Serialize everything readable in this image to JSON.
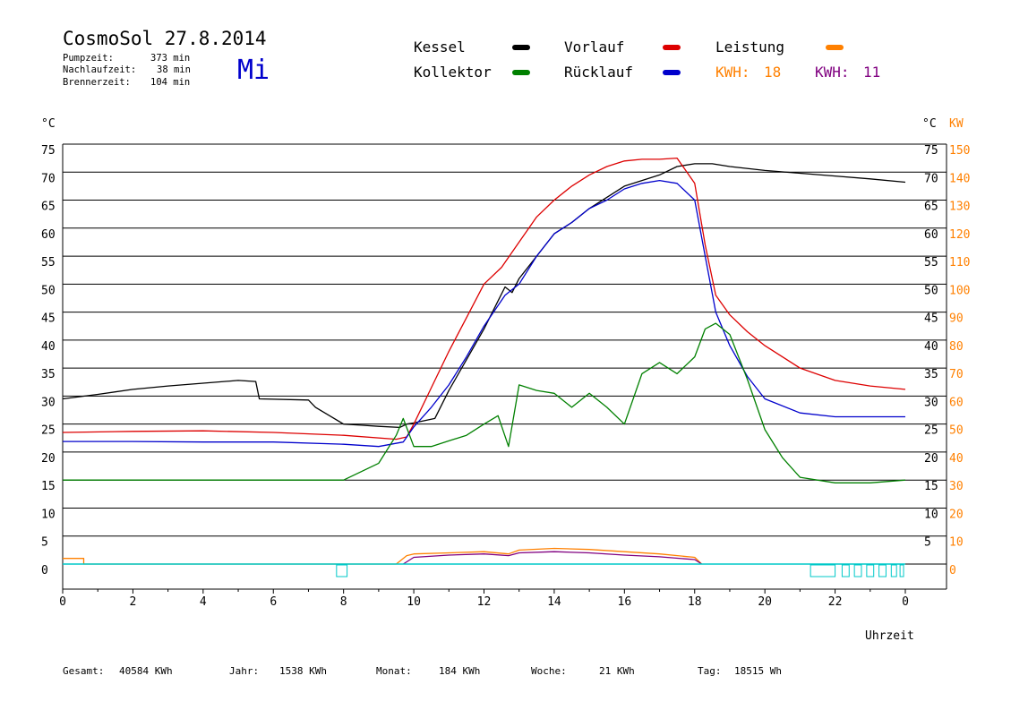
{
  "header": {
    "title": "CosmoSol 27.8.2014",
    "day": "Mi",
    "info": [
      {
        "label": "Pumpzeit:",
        "value": "373 min"
      },
      {
        "label": "Nachlaufzeit:",
        "value": "38 min"
      },
      {
        "label": "Brennerzeit:",
        "value": "104 min"
      }
    ]
  },
  "legend": {
    "items": [
      {
        "label": "Kessel",
        "color": "#000000"
      },
      {
        "label": "Vorlauf",
        "color": "#dd0000"
      },
      {
        "label": "Leistung",
        "color": "#ff8000"
      },
      {
        "label": "Kollektor",
        "color": "#008000"
      },
      {
        "label": "Rücklauf",
        "color": "#0000cc"
      }
    ],
    "kwh": [
      {
        "label": "KWH:",
        "value": "18",
        "color": "#ff8000"
      },
      {
        "label": "KWH:",
        "value": "11",
        "color": "#800080"
      }
    ]
  },
  "footer": {
    "items": [
      {
        "label": "Gesamt:",
        "value": "40584 KWh"
      },
      {
        "label": "Jahr:",
        "value": "1538 KWh"
      },
      {
        "label": "Monat:",
        "value": "184 KWh"
      },
      {
        "label": "Woche:",
        "value": "21 KWh"
      },
      {
        "label": "Tag:",
        "value": "18515 Wh"
      }
    ]
  },
  "chart_data": {
    "type": "line",
    "xlabel": "Uhrzeit",
    "ylabel_left": "°C",
    "ylabel_right_1": "°C",
    "ylabel_right_2": "KW",
    "x_ticks": [
      "0",
      "2",
      "4",
      "6",
      "8",
      "10",
      "12",
      "14",
      "16",
      "18",
      "20",
      "22",
      "0"
    ],
    "xlim": [
      0,
      24
    ],
    "y_ticks_left": [
      "75",
      "70",
      "65",
      "60",
      "55",
      "50",
      "45",
      "40",
      "35",
      "30",
      "25",
      "20",
      "15",
      "10",
      "5",
      "0"
    ],
    "y_ticks_right": [
      "75",
      "70",
      "65",
      "60",
      "55",
      "50",
      "45",
      "40",
      "35",
      "30",
      "25",
      "20",
      "15",
      "10",
      "5"
    ],
    "y_ticks_kw": [
      "150",
      "140",
      "130",
      "120",
      "110",
      "100",
      "90",
      "80",
      "70",
      "60",
      "50",
      "40",
      "30",
      "20",
      "10",
      "0"
    ],
    "ylim": [
      0,
      75
    ],
    "grid": true,
    "series": [
      {
        "name": "Kessel",
        "color": "#000000",
        "x": [
          0,
          1,
          2,
          3,
          4,
          5,
          5.5,
          5.6,
          7,
          7.2,
          7.6,
          8,
          8.5,
          9,
          9.6,
          9.8,
          10,
          10.6,
          11,
          11.5,
          12,
          12.4,
          12.6,
          12.8,
          13,
          13.5,
          14,
          14.5,
          15,
          15.5,
          16,
          16.5,
          17,
          17.5,
          18,
          18.5,
          19,
          20,
          21,
          22,
          23,
          24
        ],
        "y": [
          29.5,
          30.3,
          31.2,
          31.8,
          32.3,
          32.8,
          32.6,
          29.5,
          29.3,
          28,
          26.5,
          25,
          24.8,
          24.6,
          24.4,
          25,
          25.2,
          26,
          31,
          36.5,
          42,
          47,
          49.5,
          48.5,
          51,
          55,
          59,
          61,
          63.5,
          65.5,
          67.5,
          68.5,
          69.5,
          71,
          71.5,
          71.5,
          71,
          70.3,
          69.8,
          69.3,
          68.8,
          68.2
        ]
      },
      {
        "name": "Vorlauf",
        "color": "#dd0000",
        "x": [
          0,
          2,
          4,
          6,
          8,
          9.5,
          9.8,
          10,
          10.5,
          11,
          11.5,
          12,
          12.5,
          13,
          13.5,
          14,
          14.5,
          15,
          15.5,
          16,
          16.5,
          17,
          17.5,
          18,
          18.3,
          18.6,
          19,
          19.5,
          20,
          21,
          22,
          23,
          24
        ],
        "y": [
          23.5,
          23.7,
          23.8,
          23.5,
          23,
          22.3,
          22.7,
          25,
          31.5,
          38,
          44,
          50,
          53,
          57.5,
          62,
          65,
          67.5,
          69.5,
          71,
          72,
          72.3,
          72.3,
          72.5,
          68,
          57,
          48,
          44.5,
          41.5,
          39,
          35,
          32.8,
          31.8,
          31.2
        ]
      },
      {
        "name": "Rücklauf",
        "color": "#0000cc",
        "x": [
          0,
          2,
          4,
          6,
          8,
          9,
          9.7,
          10,
          10.5,
          11,
          11.5,
          12,
          12.6,
          13,
          13.5,
          14,
          14.5,
          15,
          15.5,
          16,
          16.5,
          17,
          17.5,
          18,
          18.3,
          18.6,
          19,
          19.5,
          20,
          21,
          22,
          23,
          24
        ],
        "y": [
          21.9,
          21.9,
          21.8,
          21.8,
          21.4,
          21,
          21.8,
          24.5,
          28,
          32,
          37,
          42.5,
          48,
          50,
          55,
          59,
          61,
          63.5,
          65,
          67,
          68,
          68.5,
          68,
          65,
          55,
          45,
          39,
          33.5,
          29.5,
          27,
          26.3,
          26.3,
          26.3
        ]
      },
      {
        "name": "Kollektor",
        "color": "#008000",
        "x": [
          0,
          2,
          4,
          6,
          8,
          8.5,
          9,
          9.5,
          9.7,
          10,
          10.5,
          11,
          11.5,
          12,
          12.4,
          12.7,
          13,
          13.5,
          14,
          14.5,
          15,
          15.5,
          16,
          16.5,
          17,
          17.5,
          18,
          18.3,
          18.6,
          19,
          19.5,
          20,
          20.5,
          21,
          22,
          23,
          24
        ],
        "y": [
          15,
          15,
          15,
          15,
          15,
          16.5,
          18,
          23,
          26,
          21,
          21,
          22,
          23,
          25,
          26.5,
          21,
          32,
          31,
          30.5,
          28,
          30.5,
          28,
          25,
          34,
          36,
          34,
          37,
          42,
          43,
          41,
          33,
          24,
          19,
          15.5,
          14.5,
          14.5,
          15
        ]
      },
      {
        "name": "Leistung",
        "color": "#ff8000",
        "x": [
          0,
          0.6,
          0.6,
          9.5,
          9.8,
          10,
          11,
          12,
          12.7,
          13,
          14,
          15,
          16,
          17,
          18,
          18.2
        ],
        "y": [
          1,
          1,
          0,
          0,
          1.5,
          1.8,
          2,
          2.2,
          1.8,
          2.5,
          2.8,
          2.6,
          2.2,
          1.8,
          1.2,
          0
        ]
      },
      {
        "name": "KWH 11",
        "color": "#800080",
        "x": [
          9.7,
          10,
          11,
          12,
          12.7,
          13,
          14,
          15,
          16,
          17,
          18,
          18.2
        ],
        "y": [
          0,
          1.2,
          1.6,
          1.8,
          1.5,
          2,
          2.2,
          2,
          1.6,
          1.3,
          0.8,
          0
        ]
      }
    ],
    "pump_markers": {
      "color": "#00c8c8",
      "baseline_y": 0,
      "boxes_x": [
        [
          7.8,
          8.1
        ],
        [
          21.3,
          22.0
        ],
        [
          22.2,
          22.4
        ],
        [
          22.55,
          22.75
        ],
        [
          22.9,
          23.1
        ],
        [
          23.25,
          23.45
        ],
        [
          23.6,
          23.75
        ],
        [
          23.85,
          23.95
        ]
      ]
    }
  }
}
